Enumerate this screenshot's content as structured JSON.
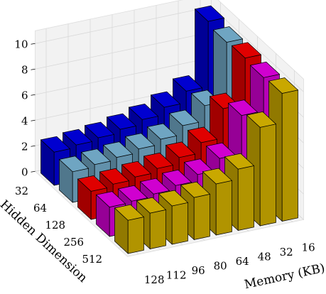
{
  "chart_data": {
    "type": "bar3d",
    "x_label": "Memory (KB)",
    "y_label": "Hidden Dimension",
    "categories": [
      "128",
      "112",
      "96",
      "80",
      "64",
      "48",
      "32",
      "16"
    ],
    "series": [
      {
        "name": "32",
        "color": "#0000d0",
        "values": [
          2.6,
          2.8,
          3.0,
          3.3,
          3.7,
          4.3,
          5.2,
          10.3
        ]
      },
      {
        "name": "64",
        "color": "#6fa5c2",
        "values": [
          2.4,
          2.6,
          2.8,
          3.1,
          3.5,
          4.2,
          5.4,
          10.0
        ]
      },
      {
        "name": "128",
        "color": "#e00000",
        "values": [
          2.2,
          2.4,
          2.6,
          2.9,
          3.4,
          4.2,
          6.5,
          10.1
        ]
      },
      {
        "name": "256",
        "color": "#d000d0",
        "values": [
          2.3,
          2.4,
          2.6,
          2.9,
          3.4,
          4.3,
          7.3,
          9.9
        ]
      },
      {
        "name": "512",
        "color": "#c9a800",
        "values": [
          2.6,
          2.8,
          3.0,
          3.3,
          4.0,
          4.8,
          7.7,
          10.0
        ]
      }
    ],
    "zlim": [
      0,
      11
    ],
    "zticks": [
      0,
      2,
      4,
      6,
      8,
      10
    ],
    "grid": true
  }
}
